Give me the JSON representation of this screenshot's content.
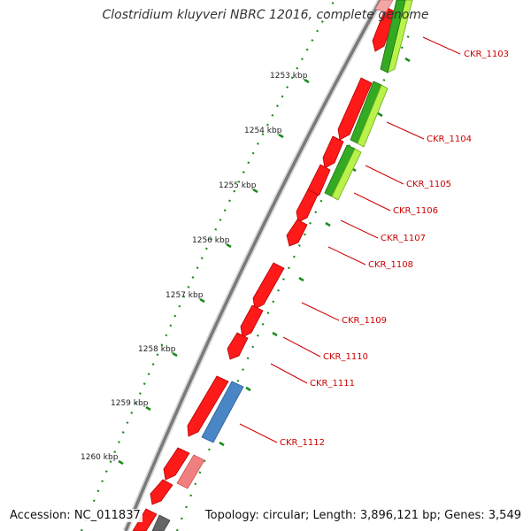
{
  "title": "Clostridium kluyveri NBRC 12016, complete genome",
  "footer": {
    "accession": "Accession: NC_011837",
    "summary": "Topology: circular; Length: 3,896,121 bp; Genes: 3,549"
  },
  "colors": {
    "gene_red": "#ff1a1a",
    "gene_red_dark": "#b30000",
    "gene_pink": "#f08080",
    "gene_blue": "#4a86c5",
    "gene_green": "#33aa22",
    "gene_lightgreen": "#b8f24a",
    "backbone": "#7a7a7a",
    "tick": "#1a8a1a",
    "label": "#cc0000"
  },
  "ruler": [
    "1253 kbp",
    "1254 kbp",
    "1255 kbp",
    "1256 kbp",
    "1257 kbp",
    "1258 kbp",
    "1259 kbp",
    "1260 kbp"
  ],
  "gene_labels": [
    "CKR_1103",
    "CKR_1104",
    "CKR_1105",
    "CKR_1106",
    "CKR_1107",
    "CKR_1108",
    "CKR_1109",
    "CKR_1110",
    "CKR_1111",
    "CKR_1112"
  ]
}
